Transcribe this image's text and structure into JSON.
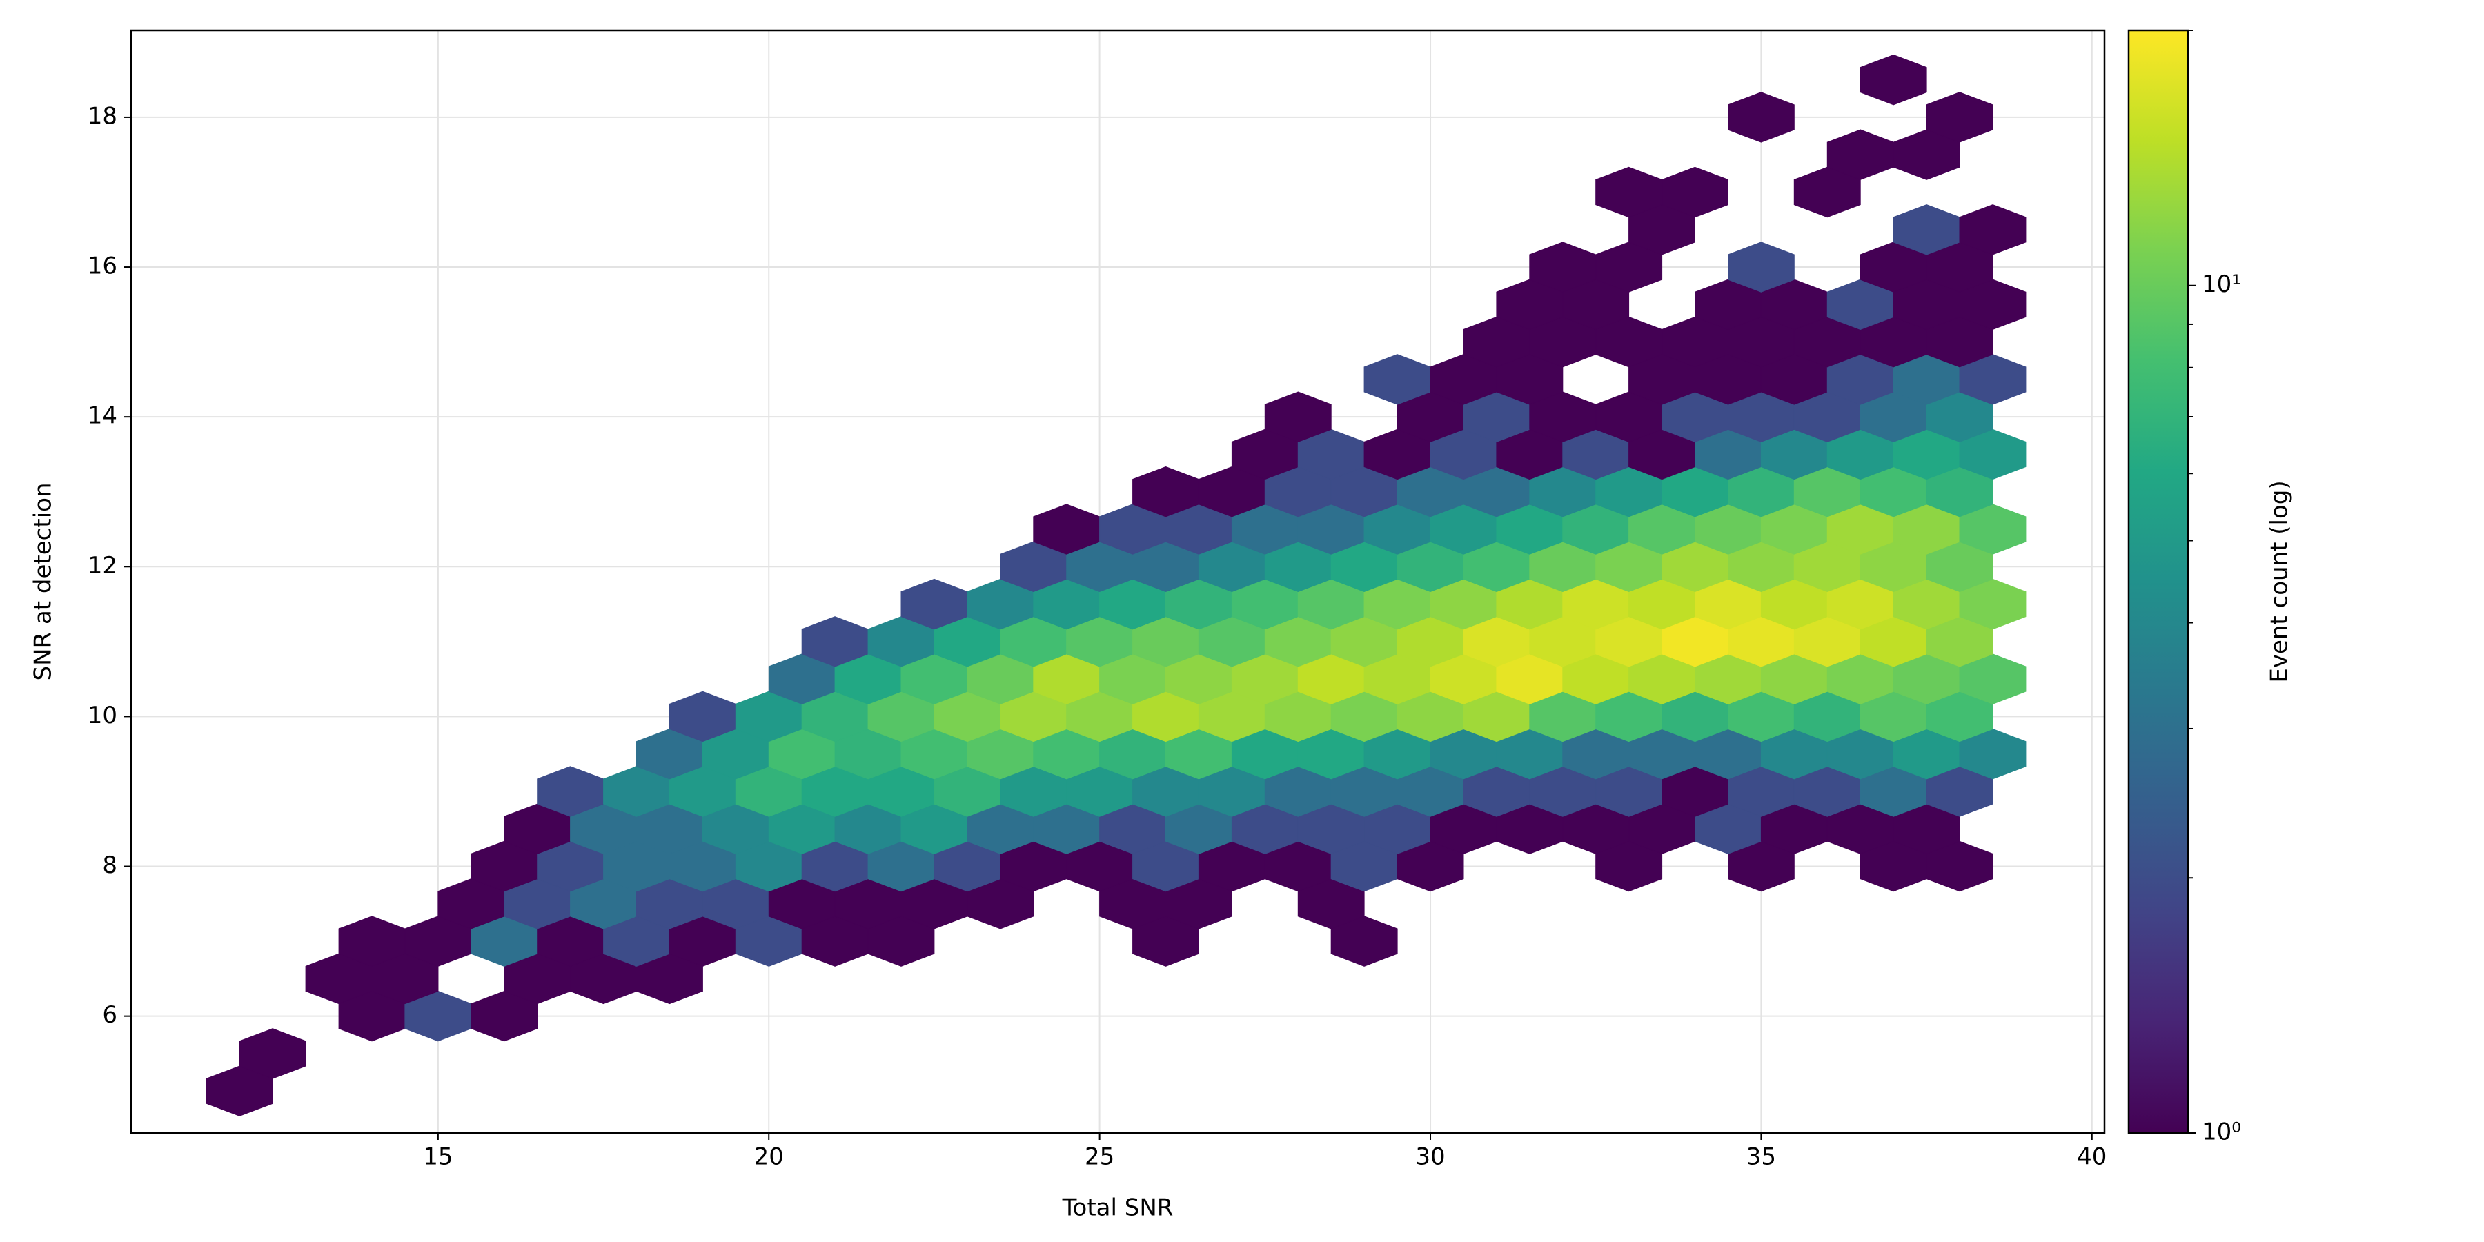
{
  "chart_data": {
    "type": "hexbin",
    "xlabel": "Total SNR",
    "ylabel": "SNR at detection",
    "colorbar_label": "Event count (log)",
    "xlim": [
      10.36,
      40.19
    ],
    "ylim": [
      4.44,
      19.16
    ],
    "xticks": [
      15,
      20,
      25,
      30,
      35,
      40
    ],
    "yticks": [
      6,
      8,
      10,
      12,
      14,
      16,
      18
    ],
    "grid": true,
    "cmap": "viridis",
    "cscale": "log",
    "clim": [
      1,
      20
    ],
    "cticks": [
      {
        "value": 1,
        "label": "10⁰"
      },
      {
        "value": 10,
        "label": "10¹"
      }
    ],
    "cminor_ticks": [
      2,
      3,
      4,
      5,
      6,
      7,
      8,
      9,
      20
    ],
    "rows": [
      {
        "y": 5.0,
        "x": [
          12
        ],
        "values": [
          1
        ]
      },
      {
        "y": 5.5,
        "x": [
          12.5
        ],
        "values": [
          1
        ]
      },
      {
        "y": 6.0,
        "x": [
          14,
          15,
          16
        ],
        "values": [
          1,
          2,
          1
        ]
      },
      {
        "y": 6.5,
        "x": [
          13.5,
          14.5,
          16.5,
          17.5,
          18.5
        ],
        "values": [
          1,
          1,
          1,
          1,
          1
        ]
      },
      {
        "y": 7.0,
        "x": [
          14,
          15,
          16,
          17,
          18,
          19,
          20,
          21,
          22,
          26,
          29
        ],
        "values": [
          1,
          1,
          3,
          1,
          2,
          1,
          2,
          1,
          1,
          1,
          1
        ]
      },
      {
        "y": 7.5,
        "x": [
          15.5,
          16.5,
          17.5,
          18.5,
          19.5,
          20.5,
          21.5,
          22.5,
          23.5,
          25.5,
          26.5,
          28.5
        ],
        "values": [
          1,
          2,
          3,
          2,
          2,
          1,
          1,
          1,
          1,
          1,
          1,
          1
        ]
      },
      {
        "y": 8.0,
        "x": [
          16,
          17,
          18,
          19,
          20,
          21,
          22,
          23,
          24,
          25,
          26,
          27,
          28,
          29,
          30,
          33,
          35,
          37,
          38
        ],
        "values": [
          1,
          2,
          3,
          3,
          4,
          2,
          3,
          2,
          1,
          1,
          2,
          1,
          1,
          2,
          1,
          1,
          1,
          1,
          1
        ]
      },
      {
        "y": 8.5,
        "x": [
          16.5,
          17.5,
          18.5,
          19.5,
          20.5,
          21.5,
          22.5,
          23.5,
          24.5,
          25.5,
          26.5,
          27.5,
          28.5,
          29.5,
          30.5,
          31.5,
          32.5,
          33.5,
          34.5,
          35.5,
          36.5,
          37.5
        ],
        "values": [
          1,
          3,
          3,
          4,
          5,
          4,
          5,
          3,
          3,
          2,
          3,
          2,
          2,
          2,
          1,
          1,
          1,
          1,
          2,
          1,
          1,
          1
        ]
      },
      {
        "y": 9.0,
        "x": [
          17,
          18,
          19,
          20,
          21,
          22,
          23,
          24,
          25,
          26,
          27,
          28,
          29,
          30,
          31,
          32,
          33,
          34,
          35,
          36,
          37,
          38
        ],
        "values": [
          2,
          4,
          5,
          7,
          6,
          6,
          7,
          5,
          5,
          4,
          4,
          3,
          3,
          3,
          2,
          2,
          2,
          1,
          2,
          2,
          3,
          2
        ]
      },
      {
        "y": 9.5,
        "x": [
          18.5,
          19.5,
          20.5,
          21.5,
          22.5,
          23.5,
          24.5,
          25.5,
          26.5,
          27.5,
          28.5,
          29.5,
          30.5,
          31.5,
          32.5,
          33.5,
          34.5,
          35.5,
          36.5,
          37.5,
          38.5
        ],
        "values": [
          3,
          5,
          8,
          7,
          8,
          9,
          8,
          7,
          8,
          6,
          6,
          5,
          4,
          4,
          3,
          3,
          3,
          4,
          4,
          5,
          4
        ]
      },
      {
        "y": 10.0,
        "x": [
          19,
          20,
          21,
          22,
          23,
          24,
          25,
          26,
          27,
          28,
          29,
          30,
          31,
          32,
          33,
          34,
          35,
          36,
          37,
          38
        ],
        "values": [
          2,
          5,
          7,
          9,
          11,
          13,
          12,
          14,
          13,
          12,
          11,
          12,
          13,
          9,
          8,
          7,
          8,
          7,
          9,
          8
        ]
      },
      {
        "y": 10.5,
        "x": [
          20.5,
          21.5,
          22.5,
          23.5,
          24.5,
          25.5,
          26.5,
          27.5,
          28.5,
          29.5,
          30.5,
          31.5,
          32.5,
          33.5,
          34.5,
          35.5,
          36.5,
          37.5,
          38.5
        ],
        "values": [
          3,
          6,
          8,
          10,
          14,
          11,
          12,
          13,
          15,
          14,
          16,
          18,
          15,
          14,
          13,
          12,
          11,
          10,
          9
        ]
      },
      {
        "y": 11.0,
        "x": [
          21,
          22,
          23,
          24,
          25,
          26,
          27,
          28,
          29,
          30,
          31,
          32,
          33,
          34,
          35,
          36,
          37,
          38
        ],
        "values": [
          2,
          4,
          6,
          8,
          9,
          10,
          9,
          11,
          12,
          14,
          17,
          16,
          17,
          19,
          18,
          17,
          15,
          12
        ]
      },
      {
        "y": 11.5,
        "x": [
          22.5,
          23.5,
          24.5,
          25.5,
          26.5,
          27.5,
          28.5,
          29.5,
          30.5,
          31.5,
          32.5,
          33.5,
          34.5,
          35.5,
          36.5,
          37.5,
          38.5
        ],
        "values": [
          2,
          4,
          5,
          6,
          7,
          8,
          9,
          11,
          12,
          14,
          16,
          15,
          17,
          15,
          16,
          13,
          11
        ]
      },
      {
        "y": 12.0,
        "x": [
          24,
          25,
          26,
          27,
          28,
          29,
          30,
          31,
          32,
          33,
          34,
          35,
          36,
          37,
          38
        ],
        "values": [
          2,
          3,
          3,
          4,
          5,
          6,
          7,
          8,
          10,
          11,
          13,
          12,
          13,
          12,
          10
        ]
      },
      {
        "y": 12.5,
        "x": [
          24.5,
          25.5,
          26.5,
          27.5,
          28.5,
          29.5,
          30.5,
          31.5,
          32.5,
          33.5,
          34.5,
          35.5,
          36.5,
          37.5,
          38.5
        ],
        "values": [
          1,
          2,
          2,
          3,
          3,
          4,
          5,
          6,
          7,
          9,
          10,
          11,
          13,
          12,
          9
        ]
      },
      {
        "y": 13.0,
        "x": [
          26,
          27,
          28,
          29,
          30,
          31,
          32,
          33,
          34,
          35,
          36,
          37,
          38
        ],
        "values": [
          1,
          1,
          2,
          2,
          3,
          3,
          4,
          5,
          6,
          7,
          9,
          8,
          7
        ]
      },
      {
        "y": 13.5,
        "x": [
          27.5,
          28.5,
          29.5,
          30.5,
          31.5,
          32.5,
          33.5,
          34.5,
          35.5,
          36.5,
          37.5,
          38.5
        ],
        "values": [
          1,
          2,
          1,
          2,
          1,
          2,
          1,
          3,
          4,
          5,
          6,
          5
        ]
      },
      {
        "y": 14.0,
        "x": [
          28,
          30,
          31,
          32,
          33,
          34,
          35,
          36,
          37,
          38
        ],
        "values": [
          1,
          1,
          2,
          1,
          1,
          2,
          2,
          2,
          3,
          4
        ]
      },
      {
        "y": 14.5,
        "x": [
          29.5,
          30.5,
          31.5,
          33.5,
          34.5,
          35.5,
          36.5,
          37.5,
          38.5
        ],
        "values": [
          2,
          1,
          1,
          1,
          1,
          1,
          2,
          3,
          2
        ]
      },
      {
        "y": 15.0,
        "x": [
          31,
          32,
          33,
          34,
          35,
          36,
          37,
          38
        ],
        "values": [
          1,
          1,
          1,
          1,
          1,
          1,
          1,
          1
        ]
      },
      {
        "y": 15.5,
        "x": [
          31.5,
          32.5,
          34.5,
          35.5,
          36.5,
          37.5,
          38.5
        ],
        "values": [
          1,
          1,
          1,
          1,
          2,
          1,
          1
        ]
      },
      {
        "y": 16.0,
        "x": [
          32,
          33,
          35,
          37,
          38
        ],
        "values": [
          1,
          1,
          2,
          1,
          1
        ]
      },
      {
        "y": 16.5,
        "x": [
          33.5,
          37.5,
          38.5
        ],
        "values": [
          1,
          2,
          1
        ]
      },
      {
        "y": 17.0,
        "x": [
          33,
          34,
          36
        ],
        "values": [
          1,
          1,
          1
        ]
      },
      {
        "y": 17.5,
        "x": [
          36.5,
          37.5
        ],
        "values": [
          1,
          1
        ]
      },
      {
        "y": 18.0,
        "x": [
          35,
          38
        ],
        "values": [
          1,
          1
        ]
      },
      {
        "y": 18.5,
        "x": [
          37
        ],
        "values": [
          1
        ]
      }
    ]
  }
}
